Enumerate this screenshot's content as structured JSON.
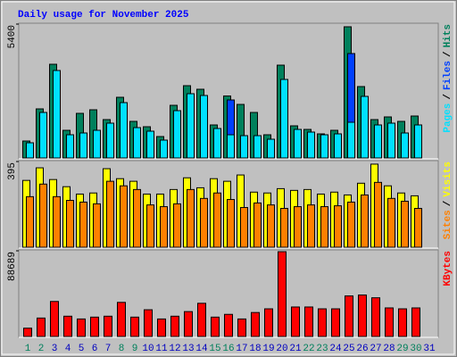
{
  "title": "Daily usage for November 2025",
  "legend_separator": "/",
  "weekend_color": "#00805c",
  "weekday_color": "#0000c0",
  "weekend_days": [
    "1",
    "2",
    "8",
    "9",
    "15",
    "16",
    "22",
    "23",
    "29",
    "30"
  ],
  "chart_data": [
    {
      "type": "bar",
      "ylim": [
        0,
        5400
      ],
      "yticks": [
        5400
      ],
      "series": [
        {
          "name": "Hits",
          "color": "#00805c",
          "values": [
            684,
            1980,
            3780,
            1116,
            1800,
            1944,
            1548,
            2448,
            1476,
            1260,
            864,
            2124,
            2916,
            2772,
            1332,
            2500,
            2160,
            1836,
            936,
            3744,
            1296,
            1152,
            972,
            1116,
            5292,
            2880,
            1548,
            1656,
            1476,
            1692,
            0
          ]
        },
        {
          "name": "Files",
          "color": "#0040ff",
          "values": [
            600,
            1800,
            3500,
            900,
            980,
            1100,
            1380,
            2200,
            1200,
            1050,
            700,
            1880,
            2560,
            2500,
            1150,
            2340,
            880,
            880,
            740,
            3100,
            1130,
            1020,
            920,
            950,
            4212,
            2450,
            1300,
            1380,
            990,
            1300,
            0
          ]
        },
        {
          "name": "Pages",
          "color": "#00e0ff",
          "values": [
            612,
            1836,
            3528,
            936,
            1008,
            1116,
            1404,
            2232,
            1224,
            1080,
            720,
            1908,
            2592,
            2520,
            1188,
            936,
            900,
            900,
            756,
            3168,
            1152,
            1044,
            936,
            972,
            1440,
            2484,
            1332,
            1404,
            1008,
            1332,
            0
          ]
        }
      ]
    },
    {
      "type": "bar",
      "ylim": [
        0,
        395
      ],
      "yticks": [
        395
      ],
      "series": [
        {
          "name": "Visits",
          "color": "#ffff00",
          "values": [
            308,
            366,
            312,
            279,
            245,
            250,
            362,
            316,
            304,
            245,
            245,
            266,
            320,
            274,
            316,
            304,
            333,
            254,
            250,
            270,
            262,
            266,
            245,
            254,
            241,
            295,
            383,
            283,
            250,
            237,
            0
          ]
        },
        {
          "name": "Sites",
          "color": "#ff8000",
          "values": [
            233,
            291,
            233,
            216,
            208,
            200,
            304,
            283,
            266,
            195,
            187,
            200,
            266,
            225,
            250,
            220,
            183,
            204,
            195,
            179,
            187,
            195,
            187,
            191,
            208,
            241,
            299,
            225,
            212,
            179,
            0
          ]
        }
      ]
    },
    {
      "type": "bar",
      "ylim": [
        0,
        88689
      ],
      "yticks": [
        88689
      ],
      "categories": [
        "1",
        "2",
        "3",
        "4",
        "5",
        "6",
        "7",
        "8",
        "9",
        "10",
        "11",
        "12",
        "13",
        "14",
        "15",
        "16",
        "17",
        "18",
        "19",
        "20",
        "21",
        "22",
        "23",
        "24",
        "25",
        "26",
        "27",
        "28",
        "29",
        "30",
        "31"
      ],
      "series": [
        {
          "name": "KBytes",
          "color": "#ff0000",
          "values": [
            8583,
            19073,
            36239,
            20980,
            18119,
            20027,
            20980,
            35285,
            20027,
            27656,
            18119,
            20980,
            25749,
            34331,
            20027,
            22888,
            18119,
            24795,
            28610,
            87735,
            30517,
            30517,
            28610,
            28610,
            41960,
            42914,
            40053,
            29564,
            28610,
            29564,
            0
          ]
        }
      ]
    }
  ]
}
